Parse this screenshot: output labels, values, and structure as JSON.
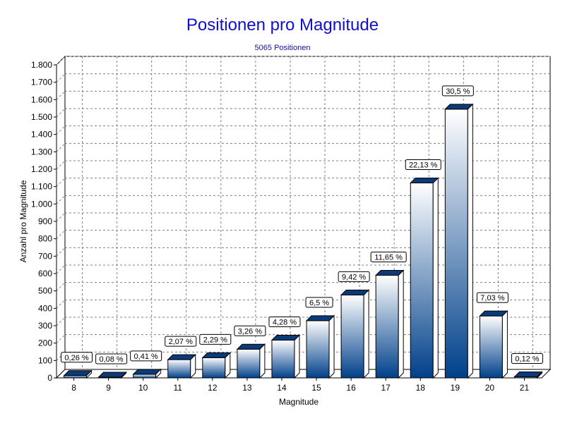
{
  "chart_data": {
    "type": "bar",
    "title": "Positionen pro Magnitude",
    "subtitle": "5065 Positionen",
    "xlabel": "Magnitude",
    "ylabel": "Anzahl pro Magnitude",
    "categories": [
      "8",
      "9",
      "10",
      "11",
      "12",
      "13",
      "14",
      "15",
      "16",
      "17",
      "18",
      "19",
      "20",
      "21"
    ],
    "values": [
      13,
      4,
      21,
      105,
      116,
      165,
      217,
      329,
      477,
      590,
      1121,
      1545,
      356,
      6
    ],
    "data_labels": [
      "0,26 %",
      "0,08 %",
      "0,41 %",
      "2,07 %",
      "2,29 %",
      "3,26 %",
      "4,28 %",
      "6,5 %",
      "9,42 %",
      "11,65 %",
      "22,13 %",
      "30,5 %",
      "7,03 %",
      "0,12 %"
    ],
    "ylim": [
      0,
      1800
    ],
    "yticks": [
      0,
      100,
      200,
      300,
      400,
      500,
      600,
      700,
      800,
      900,
      1000,
      1100,
      1200,
      1300,
      1400,
      1500,
      1600,
      1700,
      1800
    ],
    "ytick_labels": [
      "0",
      "100",
      "200",
      "300",
      "400",
      "500",
      "600",
      "700",
      "800",
      "900",
      "1.000",
      "1.100",
      "1.200",
      "1.300",
      "1.400",
      "1.500",
      "1.600",
      "1.700",
      "1.800"
    ],
    "grid": true,
    "legend": "none",
    "colors": {
      "bar_light": "#ffffff",
      "bar_dark": "#00408a",
      "bar_top": "#0a3a7a",
      "bar_side": "#04316a",
      "title": "#1010c8",
      "grid": "#808080"
    }
  }
}
